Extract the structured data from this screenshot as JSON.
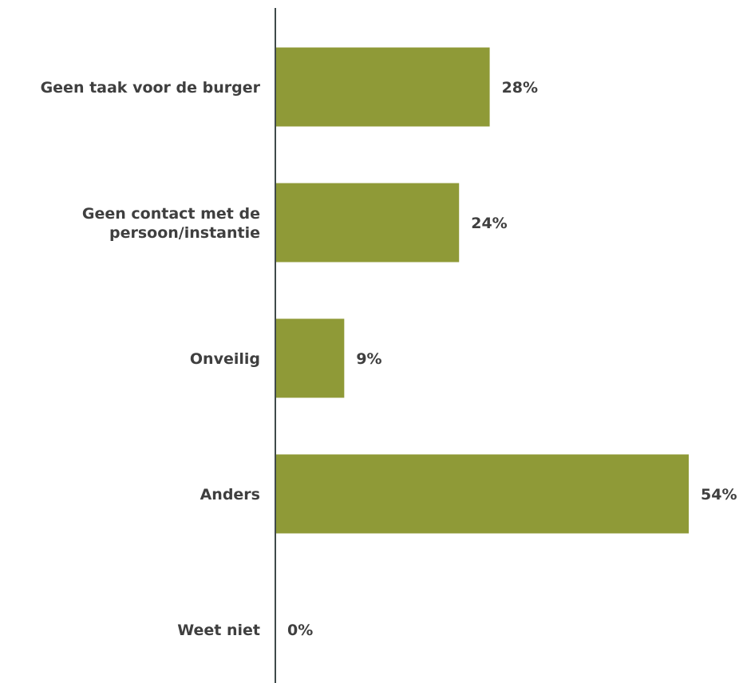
{
  "chart_data": {
    "type": "bar",
    "orientation": "horizontal",
    "categories": [
      [
        "Geen taak voor de burger"
      ],
      [
        "Geen contact met de",
        "persoon/instantie"
      ],
      [
        "Onveilig"
      ],
      [
        "Anders"
      ],
      [
        "Weet niet"
      ]
    ],
    "values": [
      28,
      24,
      9,
      54,
      0
    ],
    "value_labels": [
      "28%",
      "24%",
      "9%",
      "54%",
      "0%"
    ],
    "unit": "%",
    "bar_color": "#8f9a37",
    "axis_color": "#3f4a4a",
    "text_color": "#3f3f3f",
    "grid": false,
    "legend": "none"
  }
}
